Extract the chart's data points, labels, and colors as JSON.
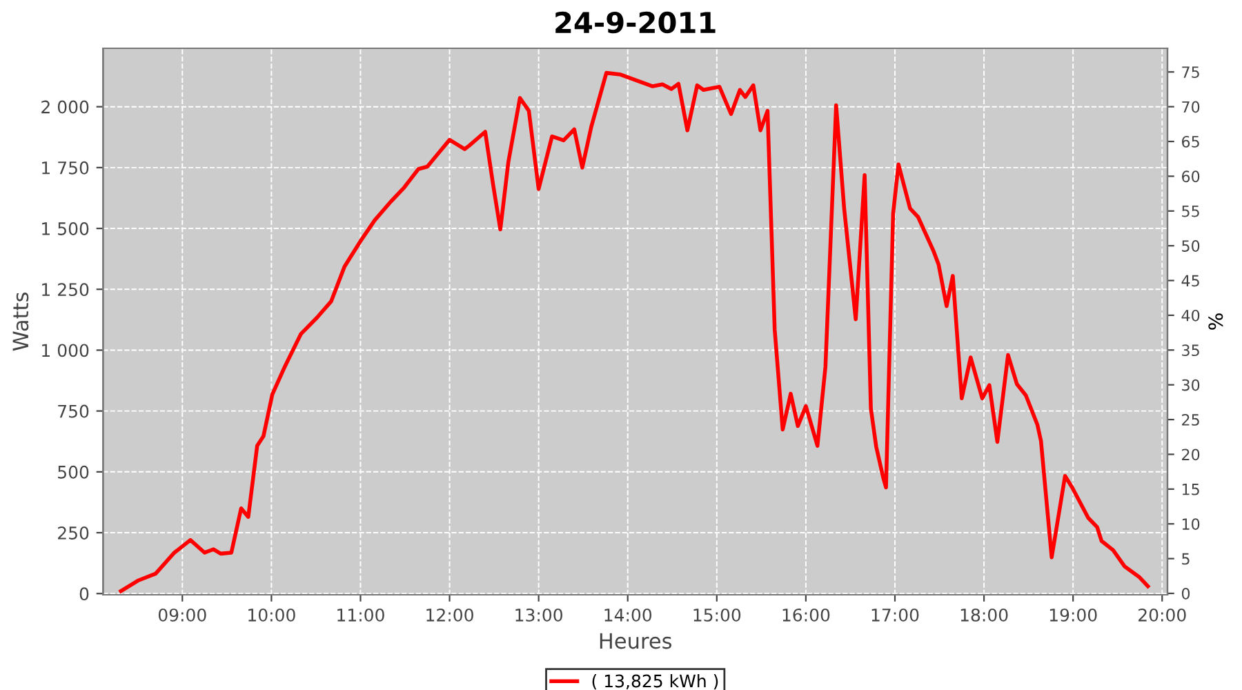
{
  "chart_data": {
    "type": "line",
    "title": "24-9-2011",
    "xlabel": "Heures",
    "ylabel": "Watts",
    "y2label": "%",
    "xlim": [
      8.11,
      20.06
    ],
    "xticks": [
      {
        "value": 9,
        "label": "09:00"
      },
      {
        "value": 10,
        "label": "10:00"
      },
      {
        "value": 11,
        "label": "11:00"
      },
      {
        "value": 12,
        "label": "12:00"
      },
      {
        "value": 13,
        "label": "13:00"
      },
      {
        "value": 14,
        "label": "14:00"
      },
      {
        "value": 15,
        "label": "15:00"
      },
      {
        "value": 16,
        "label": "16:00"
      },
      {
        "value": 17,
        "label": "17:00"
      },
      {
        "value": 18,
        "label": "18:00"
      },
      {
        "value": 19,
        "label": "19:00"
      },
      {
        "value": 20,
        "label": "20:00"
      }
    ],
    "ylim": [
      -5,
      2240
    ],
    "yticks": [
      0,
      250,
      500,
      750,
      {
        "value": 1000,
        "label": "1 000"
      },
      {
        "value": 1250,
        "label": "1 250"
      },
      {
        "value": 1500,
        "label": "1 500"
      },
      {
        "value": 1750,
        "label": "1 750"
      },
      {
        "value": 2000,
        "label": "2 000"
      }
    ],
    "y2lim": [
      -0.2,
      78.4
    ],
    "y2ticks": [
      0,
      5,
      10,
      15,
      20,
      25,
      30,
      35,
      40,
      45,
      50,
      55,
      60,
      65,
      70,
      75
    ],
    "grid": true,
    "legend": "bottom",
    "marker": "none",
    "line_style": "solid",
    "series": [
      {
        "name": "( 13,825 kWh )",
        "color": "#ff0000",
        "x": [
          8.31,
          8.5,
          8.7,
          8.91,
          9.09,
          9.25,
          9.35,
          9.43,
          9.55,
          9.66,
          9.74,
          9.84,
          9.91,
          10.01,
          10.15,
          10.33,
          10.51,
          10.67,
          10.82,
          11.0,
          11.16,
          11.34,
          11.49,
          11.65,
          11.75,
          11.88,
          12.0,
          12.17,
          12.22,
          12.4,
          12.49,
          12.57,
          12.66,
          12.79,
          12.89,
          13.0,
          13.15,
          13.28,
          13.4,
          13.49,
          13.59,
          13.76,
          13.92,
          14.28,
          14.39,
          14.49,
          14.57,
          14.67,
          14.78,
          14.85,
          15.03,
          15.16,
          15.26,
          15.32,
          15.41,
          15.49,
          15.57,
          15.65,
          15.74,
          15.83,
          15.91,
          16.0,
          16.13,
          16.22,
          16.34,
          16.43,
          16.56,
          16.66,
          16.73,
          16.79,
          16.87,
          16.9,
          16.98,
          17.04,
          17.17,
          17.26,
          17.43,
          17.49,
          17.58,
          17.65,
          17.75,
          17.85,
          17.98,
          18.06,
          18.15,
          18.27,
          18.37,
          18.47,
          18.6,
          18.64,
          18.76,
          18.91,
          18.99,
          19.17,
          19.27,
          19.32,
          19.45,
          19.58,
          19.74,
          19.84
        ],
        "values": [
          10,
          53,
          82,
          168,
          220,
          168,
          182,
          164,
          168,
          350,
          315,
          607,
          646,
          818,
          932,
          1066,
          1133,
          1200,
          1343,
          1448,
          1534,
          1610,
          1668,
          1744,
          1754,
          1811,
          1864,
          1826,
          1840,
          1897,
          1677,
          1496,
          1773,
          2036,
          1983,
          1662,
          1878,
          1862,
          1907,
          1750,
          1916,
          2139,
          2132,
          2084,
          2092,
          2073,
          2094,
          1903,
          2088,
          2069,
          2082,
          1970,
          2069,
          2040,
          2088,
          1903,
          1983,
          1085,
          674,
          821,
          688,
          770,
          607,
          932,
          2006,
          1582,
          1127,
          1719,
          760,
          603,
          474,
          436,
          1562,
          1763,
          1582,
          1547,
          1410,
          1352,
          1181,
          1305,
          802,
          970,
          802,
          856,
          623,
          980,
          860,
          814,
          693,
          626,
          149,
          483,
          436,
          311,
          273,
          216,
          178,
          111,
          69,
          30
        ]
      }
    ]
  }
}
